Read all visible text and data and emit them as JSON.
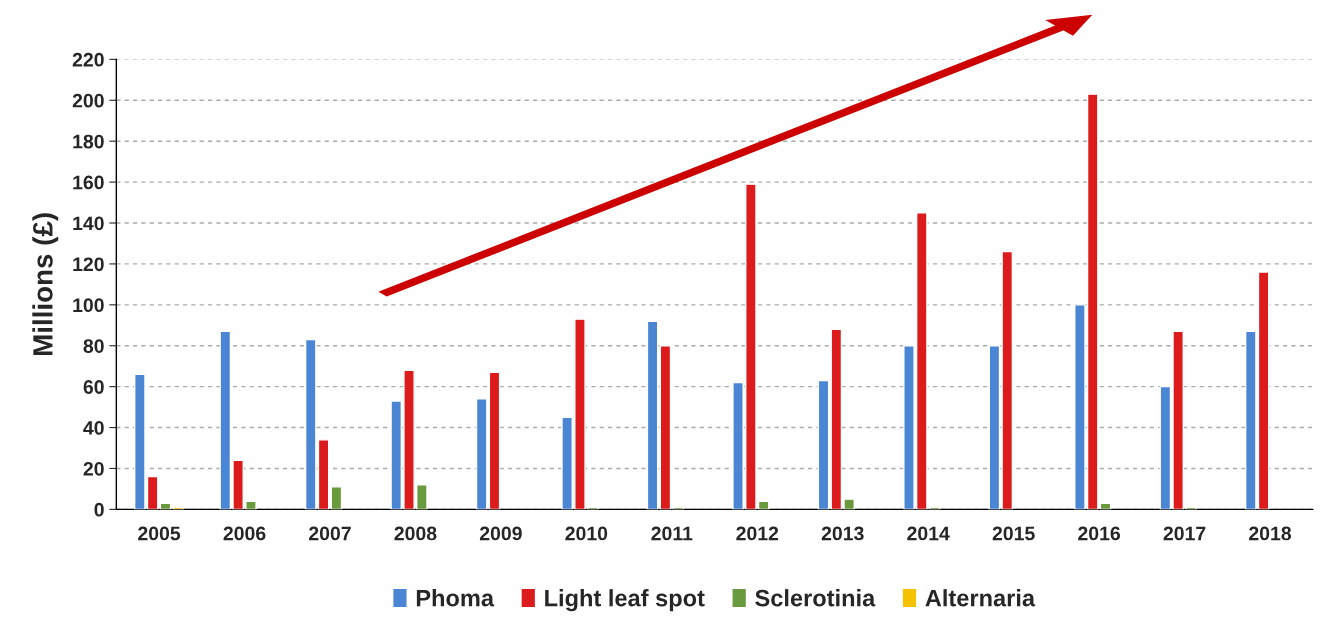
{
  "chart_data": {
    "type": "bar",
    "ylabel": "Millions (£)",
    "categories": [
      "2005",
      "2006",
      "2007",
      "2008",
      "2009",
      "2010",
      "2011",
      "2012",
      "2013",
      "2014",
      "2015",
      "2016",
      "2017",
      "2018"
    ],
    "series": [
      {
        "name": "Phoma",
        "color": "#4a86d4",
        "values": [
          66,
          87,
          83,
          53,
          54,
          45,
          92,
          62,
          63,
          80,
          80,
          100,
          60,
          87
        ]
      },
      {
        "name": "Light leaf spot",
        "color": "#dc1c1c",
        "values": [
          16,
          24,
          34,
          68,
          67,
          93,
          80,
          159,
          88,
          145,
          126,
          203,
          87,
          116
        ]
      },
      {
        "name": "Sclerotinia",
        "color": "#6a9a3e",
        "values": [
          3,
          4,
          11,
          12,
          null,
          1,
          1,
          4,
          5,
          1,
          null,
          3,
          1,
          null
        ]
      },
      {
        "name": "Alternaria",
        "color": "#f5c200",
        "values": [
          1,
          null,
          null,
          null,
          null,
          null,
          null,
          null,
          null,
          null,
          null,
          null,
          null,
          null
        ]
      }
    ],
    "ylim": [
      0,
      220
    ],
    "yticks": [
      0,
      20,
      40,
      60,
      80,
      100,
      120,
      140,
      160,
      180,
      200,
      220
    ],
    "grid": "y",
    "legend": "bottom"
  }
}
